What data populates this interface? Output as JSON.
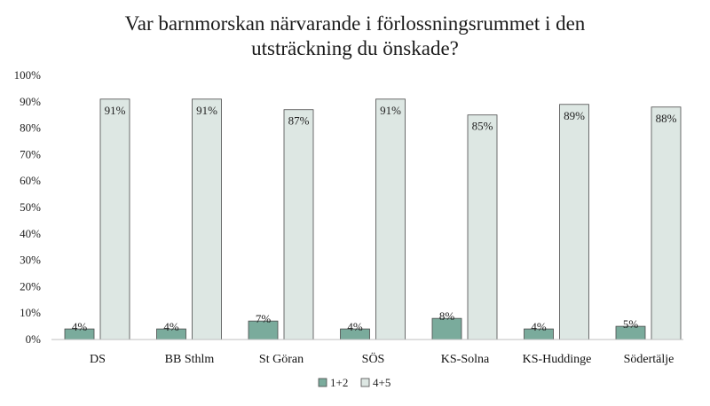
{
  "chart_data": {
    "type": "bar",
    "title_lines": [
      "Var barnmorskan närvarande i förlossningsrummet i den",
      "utsträckning du önskade?"
    ],
    "categories": [
      "DS",
      "BB Sthlm",
      "St Göran",
      "SÖS",
      "KS-Solna",
      "KS-Huddinge",
      "Södertälje"
    ],
    "series": [
      {
        "name": "1+2",
        "values": [
          4,
          4,
          7,
          4,
          8,
          4,
          5
        ],
        "labels": [
          "4%",
          "4%",
          "7%",
          "4%",
          "8%",
          "4%",
          "5%"
        ],
        "color": "#7aab9c"
      },
      {
        "name": "4+5",
        "values": [
          91,
          91,
          87,
          91,
          85,
          89,
          88
        ],
        "labels": [
          "91%",
          "91%",
          "87%",
          "91%",
          "85%",
          "89%",
          "88%"
        ],
        "color": "#dde7e3"
      }
    ],
    "ylim": [
      0,
      100
    ],
    "y_ticks": [
      "0%",
      "10%",
      "20%",
      "30%",
      "40%",
      "50%",
      "60%",
      "70%",
      "80%",
      "90%",
      "100%"
    ],
    "y_tick_values": [
      0,
      10,
      20,
      30,
      40,
      50,
      60,
      70,
      80,
      90,
      100
    ],
    "grid": false,
    "legend_position": "bottom"
  }
}
